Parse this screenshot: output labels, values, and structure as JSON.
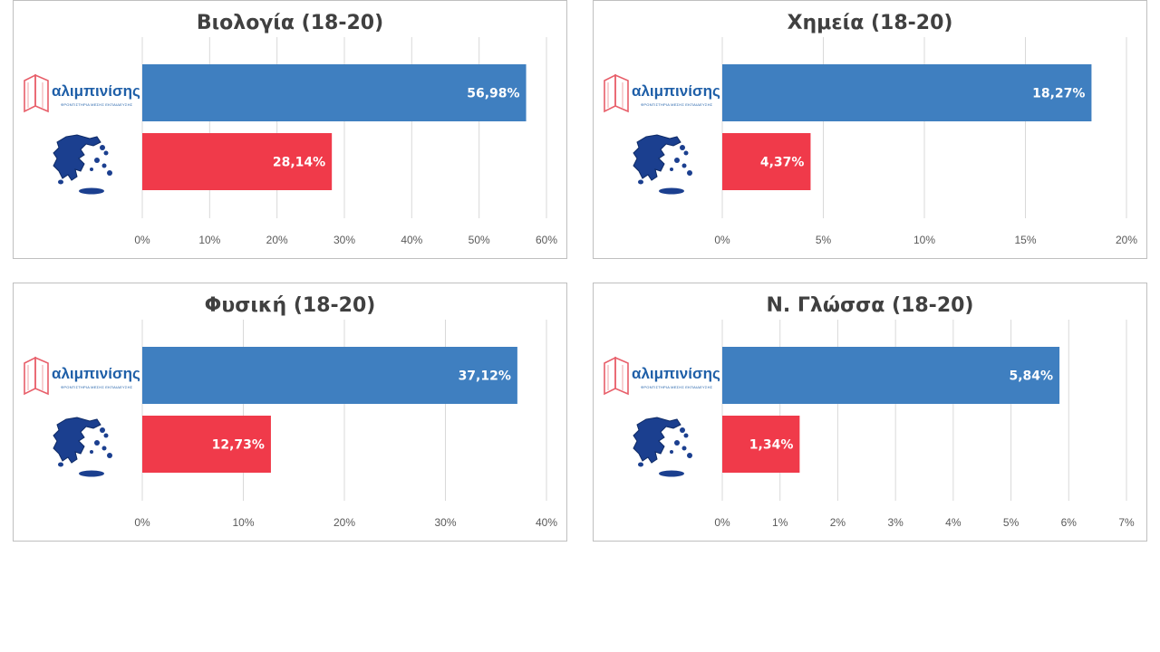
{
  "logo": {
    "name": "αλιμπινίσης",
    "tagline": "ΦΡΟΝΤΙΣΤΗΡΙΑ ΜΕΣΗΣ ΕΚΠΑΙΔΕΥΣΗΣ"
  },
  "colors": {
    "school": "#3f7fc0",
    "national": "#f03a4a",
    "grid": "#d9d9d9",
    "map": "#1b3f8f"
  },
  "chart_data": [
    {
      "type": "bar",
      "title": "Βιολογία (18-20)",
      "orientation": "horizontal",
      "series": [
        {
          "values": [
            56.98
          ],
          "label": "56,98%",
          "color": "#3f7fc0"
        },
        {
          "values": [
            28.14
          ],
          "label": "28,14%",
          "color": "#f03a4a"
        }
      ],
      "xlim": [
        0,
        60
      ],
      "ticks": [
        0,
        10,
        20,
        30,
        40,
        50,
        60
      ],
      "tick_labels": [
        "0%",
        "10%",
        "20%",
        "30%",
        "40%",
        "50%",
        "60%"
      ],
      "grid": true
    },
    {
      "type": "bar",
      "title": "Χημεία (18-20)",
      "orientation": "horizontal",
      "series": [
        {
          "values": [
            18.27
          ],
          "label": "18,27%",
          "color": "#3f7fc0"
        },
        {
          "values": [
            4.37
          ],
          "label": "4,37%",
          "color": "#f03a4a"
        }
      ],
      "xlim": [
        0,
        20
      ],
      "ticks": [
        0,
        5,
        10,
        15,
        20
      ],
      "tick_labels": [
        "0%",
        "5%",
        "10%",
        "15%",
        "20%"
      ],
      "grid": true
    },
    {
      "type": "bar",
      "title": "Φυσική (18-20)",
      "orientation": "horizontal",
      "series": [
        {
          "values": [
            37.12
          ],
          "label": "37,12%",
          "color": "#3f7fc0"
        },
        {
          "values": [
            12.73
          ],
          "label": "12,73%",
          "color": "#f03a4a"
        }
      ],
      "xlim": [
        0,
        40
      ],
      "ticks": [
        0,
        10,
        20,
        30,
        40
      ],
      "tick_labels": [
        "0%",
        "10%",
        "20%",
        "30%",
        "40%"
      ],
      "grid": true
    },
    {
      "type": "bar",
      "title": "Ν. Γλώσσα (18-20)",
      "orientation": "horizontal",
      "series": [
        {
          "values": [
            5.84
          ],
          "label": "5,84%",
          "color": "#3f7fc0"
        },
        {
          "values": [
            1.34
          ],
          "label": "1,34%",
          "color": "#f03a4a"
        }
      ],
      "xlim": [
        0,
        7
      ],
      "ticks": [
        0,
        1,
        2,
        3,
        4,
        5,
        6,
        7
      ],
      "tick_labels": [
        "0%",
        "1%",
        "2%",
        "3%",
        "4%",
        "5%",
        "6%",
        "7%"
      ],
      "grid": true
    }
  ]
}
